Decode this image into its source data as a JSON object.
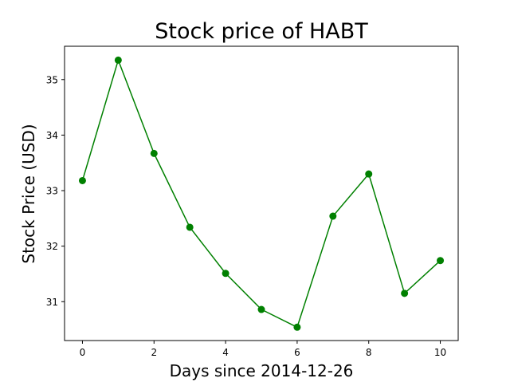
{
  "chart_data": {
    "type": "line",
    "title": "Stock price of HABT",
    "xlabel": "Days since 2014-12-26",
    "ylabel": "Stock Price (USD)",
    "x": [
      0,
      1,
      2,
      3,
      4,
      5,
      6,
      7,
      8,
      9,
      10
    ],
    "series": [
      {
        "values": [
          33.18,
          35.35,
          33.67,
          32.34,
          31.51,
          30.86,
          30.54,
          32.54,
          33.3,
          31.15,
          31.74
        ],
        "color": "#008000",
        "marker": "circle"
      }
    ],
    "xlim": [
      -0.5,
      10.5
    ],
    "ylim": [
      30.3,
      35.6
    ],
    "xticks": [
      0,
      2,
      4,
      6,
      8,
      10
    ],
    "xtick_labels": [
      "0",
      "2",
      "4",
      "6",
      "8",
      "10"
    ],
    "yticks": [
      31,
      32,
      33,
      34,
      35
    ],
    "ytick_labels": [
      "31",
      "32",
      "33",
      "34",
      "35"
    ],
    "grid": false,
    "legend": "none"
  }
}
